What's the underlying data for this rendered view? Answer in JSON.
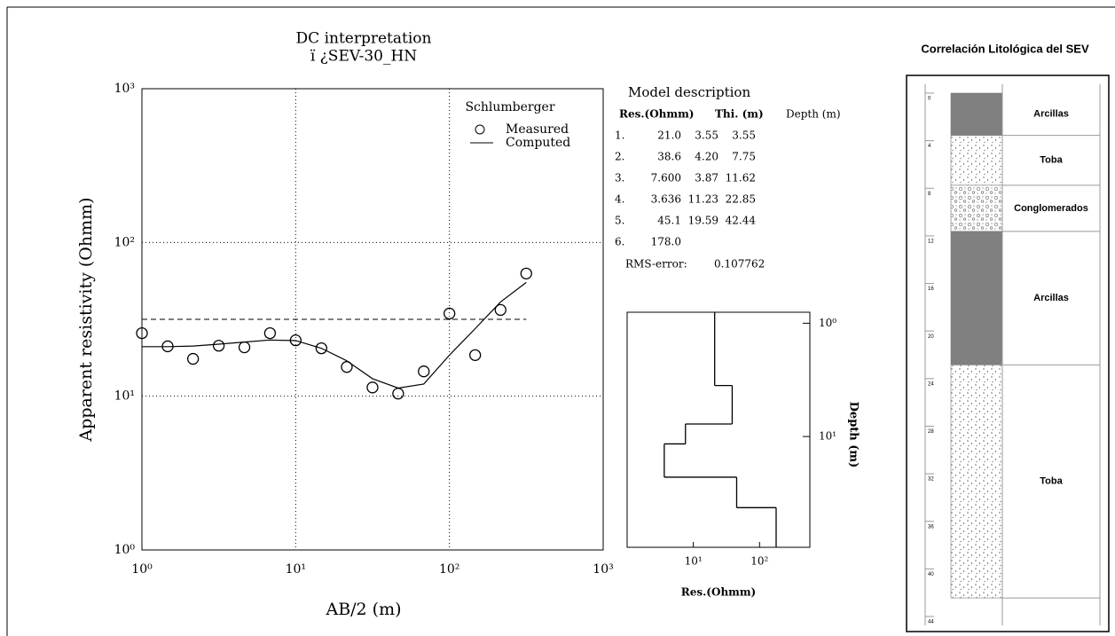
{
  "chart_data": [
    {
      "type": "line",
      "title": "DC interpretation",
      "subtitle": "ï ¿SEV-30_HN",
      "x_label": "AB/2 (m)",
      "y_label": "Apparent resistivity (Ohmm)",
      "log_scale": true,
      "grid": true,
      "legend_title": "Schlumberger",
      "x": [
        1,
        1.47,
        2.15,
        3.16,
        4.64,
        6.81,
        10,
        14.7,
        21.5,
        31.6,
        46.4,
        68.1,
        100,
        147,
        215,
        316
      ],
      "series": [
        {
          "name": "Measured",
          "color": "#000000",
          "values": [
            25.7,
            21.1,
            17.5,
            21.3,
            20.8,
            25.7,
            23.1,
            20.5,
            15.5,
            11.4,
            10.4,
            14.5,
            34.5,
            18.5,
            36.4,
            62.8
          ]
        },
        {
          "name": "Computed",
          "color": "#000000",
          "values": [
            21,
            21,
            21.2,
            21.8,
            22.5,
            23.2,
            23,
            20.5,
            17,
            13,
            11.3,
            12,
            18.5,
            27.5,
            41,
            55
          ]
        }
      ],
      "reference_line": 31.6,
      "reference_line_xmax": 316,
      "xlim": [
        1,
        1000
      ],
      "ylim": [
        1,
        1000
      ],
      "xticks": [
        {
          "value": 1,
          "label": "10⁰"
        },
        {
          "value": 10,
          "label": "10¹"
        },
        {
          "value": 100,
          "label": "10²"
        },
        {
          "value": 1000,
          "label": "10³"
        }
      ],
      "yticks": [
        {
          "value": 1,
          "label": "10⁰"
        },
        {
          "value": 10,
          "label": "10¹"
        },
        {
          "value": 100,
          "label": "10²"
        },
        {
          "value": 1000,
          "label": "10³"
        }
      ]
    },
    {
      "type": "step",
      "x_label": "Res.(Ohmm)",
      "y_label": "Depth (m)",
      "log_scale": true,
      "resistivity": [
        21.0,
        38.6,
        7.6,
        3.636,
        45.1,
        178.0
      ],
      "depth": [
        3.55,
        7.75,
        11.62,
        22.85,
        42.44
      ],
      "xlim": [
        1,
        575
      ],
      "ylim": [
        0.8,
        95
      ],
      "xticks": [
        {
          "value": 10,
          "label": "10¹"
        },
        {
          "value": 100,
          "label": "10²"
        }
      ],
      "yticks": [
        {
          "value": 1,
          "label": "10⁰"
        },
        {
          "value": 10,
          "label": "10¹"
        }
      ]
    }
  ],
  "model_description": {
    "title": "Model description",
    "columns": [
      "Res.(Ohmm)",
      "Thi. (m)",
      "Depth (m)"
    ],
    "rows": [
      [
        "1.",
        "21.0",
        "3.55",
        "3.55"
      ],
      [
        "2.",
        "38.6",
        "4.20",
        "7.75"
      ],
      [
        "3.",
        "7.600",
        "3.87",
        "11.62"
      ],
      [
        "4.",
        "3.636",
        "11.23",
        "22.85"
      ],
      [
        "5.",
        "45.1",
        "19.59",
        "42.44"
      ],
      [
        "6.",
        "178.0"
      ]
    ],
    "rms_label": "RMS-error:",
    "rms_value": "0.107762"
  },
  "lithology": {
    "title": "Correlación Litológica del SEV",
    "ylim": [
      0,
      44
    ],
    "yticks": [
      0,
      4,
      8,
      12,
      16,
      20,
      24,
      28,
      32,
      36,
      40,
      44
    ],
    "layers": [
      {
        "label": "Arcillas",
        "bottom": 3.55,
        "pattern": "clay"
      },
      {
        "label": "Toba",
        "bottom": 7.75,
        "pattern": "tuff"
      },
      {
        "label": "Conglomerados",
        "bottom": 11.62,
        "pattern": "conglomerate"
      },
      {
        "label": "Arcillas",
        "bottom": 22.85,
        "pattern": "clay"
      },
      {
        "label": "Toba",
        "bottom": 42.44,
        "pattern": "tuff"
      }
    ]
  }
}
